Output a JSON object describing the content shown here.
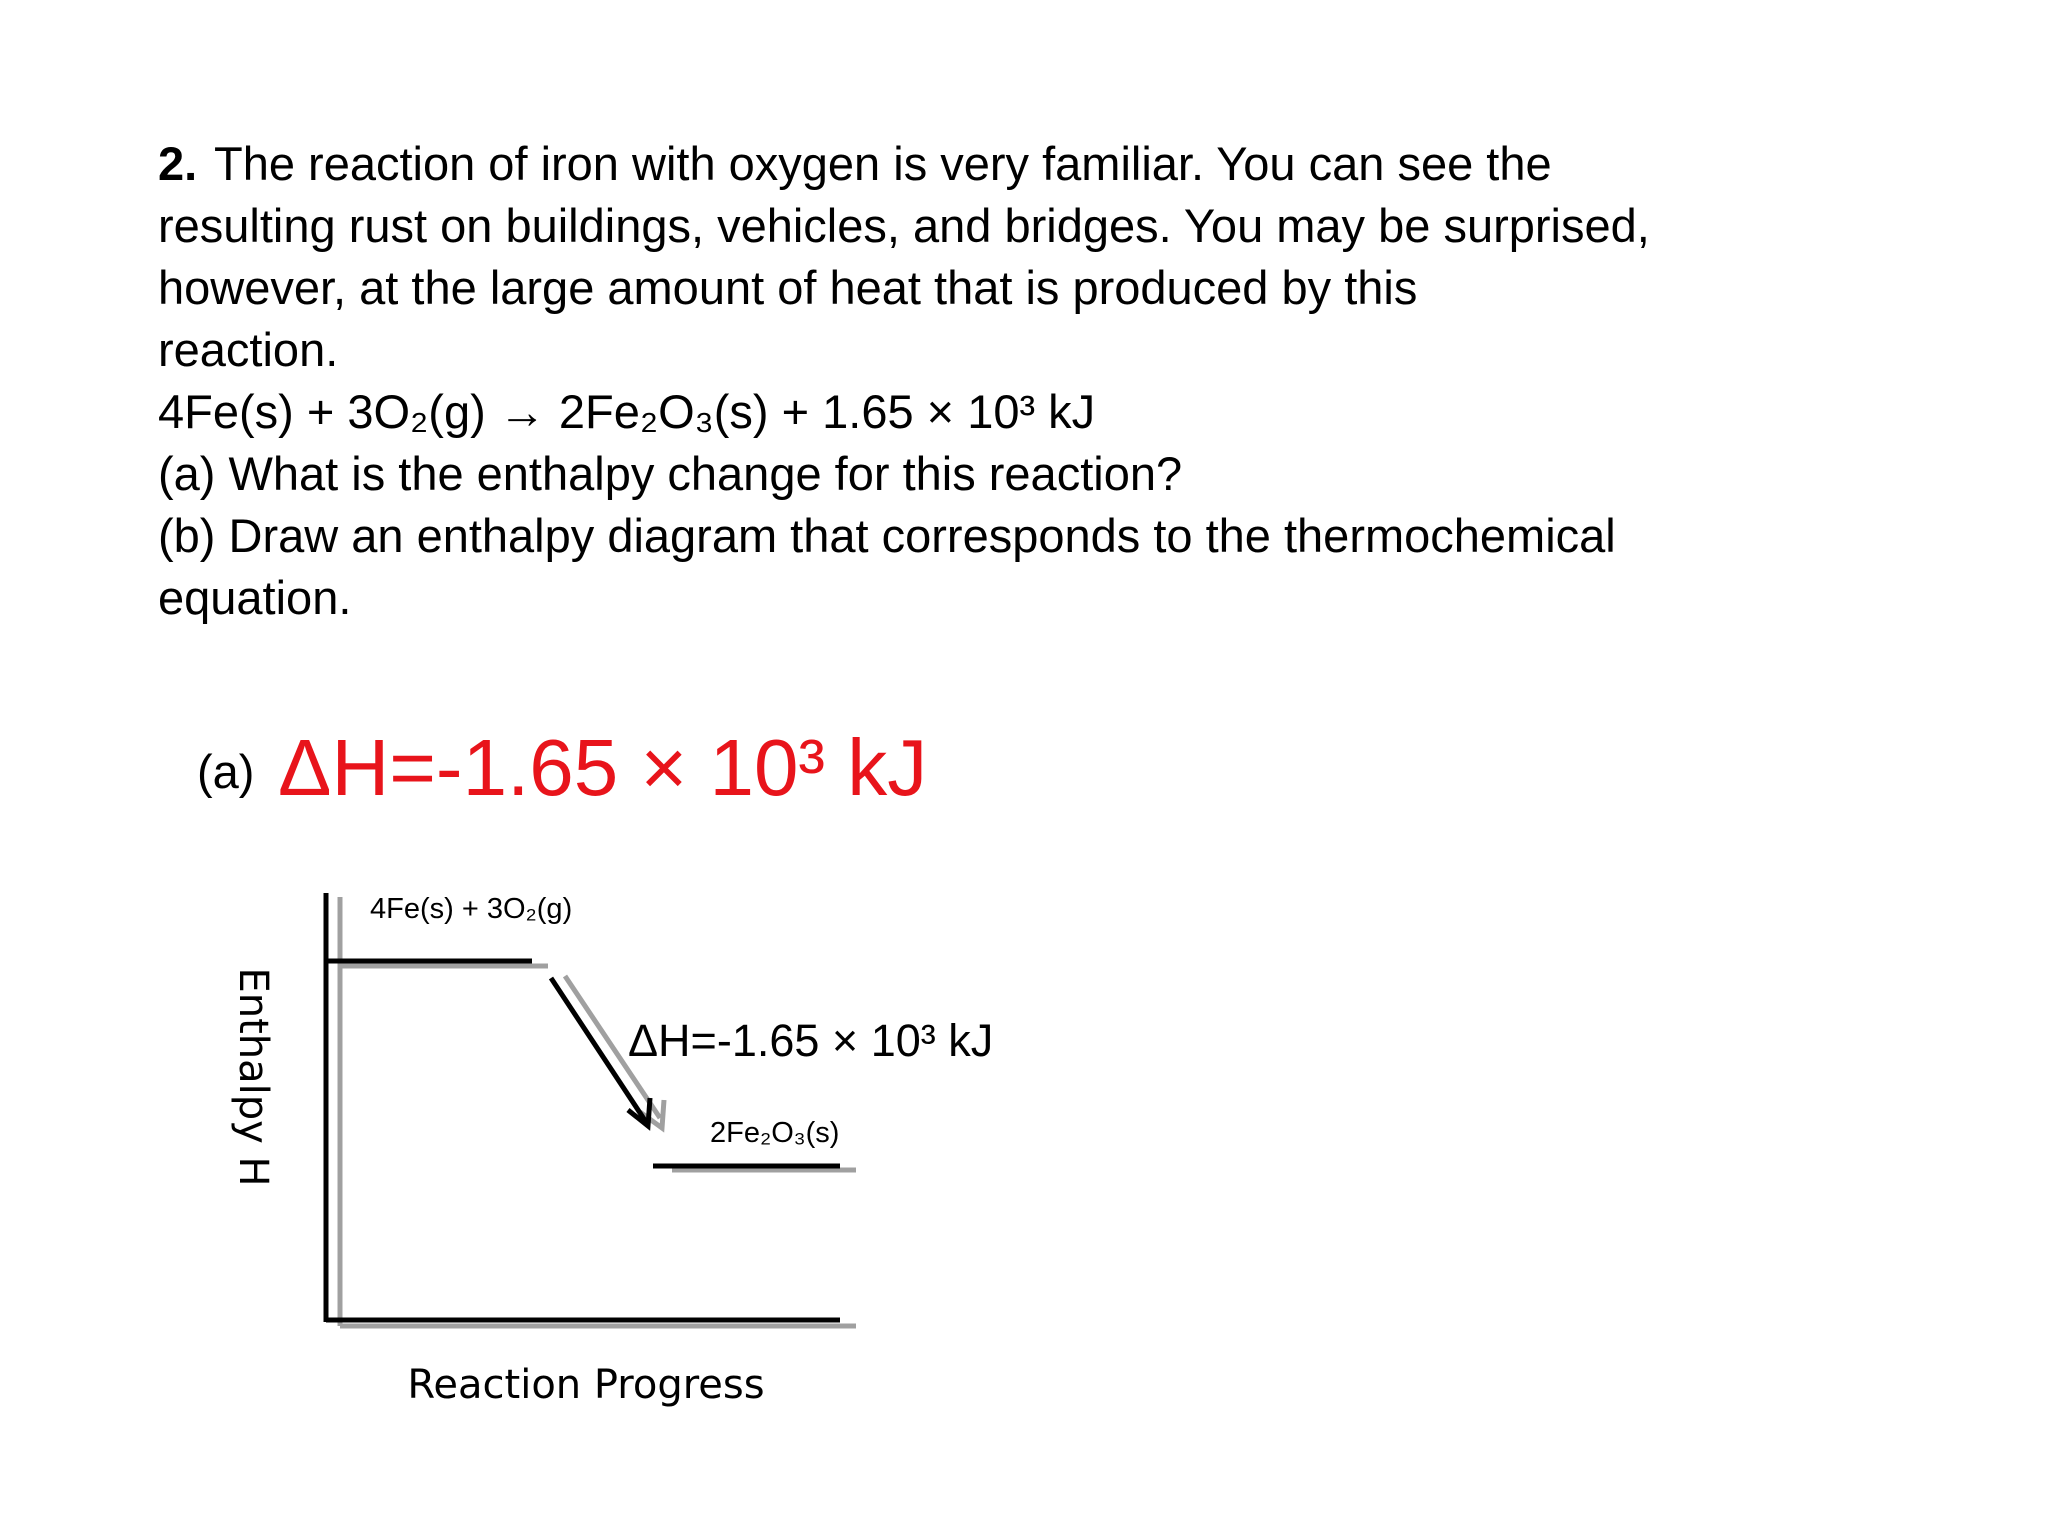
{
  "question": {
    "number": "2.",
    "lines": [
      "The reaction of iron with oxygen is very familiar. You can see the",
      "resulting rust on buildings, vehicles, and bridges. You may be surprised,",
      "however, at the large amount of heat that is produced by this",
      "reaction.",
      "4Fe(s) + 3O₂(g) → 2Fe₂O₃(s) + 1.65 × 10³ kJ",
      "(a) What is the enthalpy change for this reaction?",
      "(b) Draw an enthalpy diagram that corresponds to the thermochemical",
      "equation."
    ]
  },
  "answer": {
    "label": "(a)",
    "text": "ΔH=-1.65 × 10³ kJ"
  },
  "diagram": {
    "reactants": "4Fe(s) + 3O₂(g)",
    "products": "2Fe₂O₃(s)",
    "delta_h": "ΔH=-1.65 × 10³ kJ",
    "y_axis_label": "Enthalpy H",
    "x_axis_label": "Reaction Progress"
  }
}
